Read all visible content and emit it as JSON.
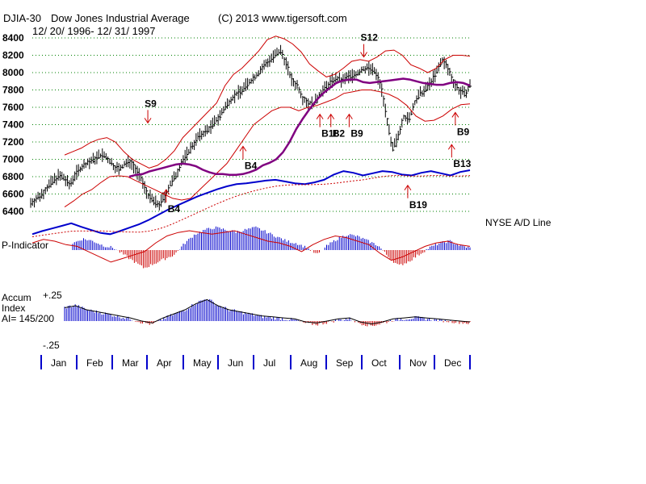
{
  "header": {
    "symbol": "DJIA-30",
    "name": "Dow Jones Industrial Average",
    "copyright": "(C) 2013 www.tigersoft.com",
    "date_range": "12/ 20/ 1996- 12/ 31/ 1997"
  },
  "labels": {
    "ad_line": "NYSE A/D Line",
    "p_indicator": "P-Indicator",
    "accum": "Accum",
    "index": "Index",
    "ai": "AI= 145/200",
    "plus25": "+.25",
    "minus25": "-.25"
  },
  "colors": {
    "price_bars": "#000000",
    "bands": "#cc0000",
    "moving_avg": "#800080",
    "ad_line": "#0000cc",
    "ad_ma": "#cc0000",
    "signal": "#cc0000",
    "gridline": "#008000",
    "positive_hist": "#0000cc",
    "negative_hist": "#cc0000"
  },
  "chart_data": {
    "type": "ohlc",
    "title": "Dow Jones Industrial Average",
    "ylim": [
      6300,
      8450
    ],
    "y_ticks": [
      "8400",
      "8200",
      "8000",
      "7800",
      "7600",
      "7400",
      "7200",
      "7000",
      "6800",
      "6600",
      "6400"
    ],
    "months": [
      "Jan",
      "Feb",
      "Mar",
      "Apr",
      "May",
      "Jun",
      "Jul",
      "Aug",
      "Sep",
      "Oct",
      "Nov",
      "Dec"
    ],
    "price_closes": [
      6500,
      6540,
      6600,
      6680,
      6750,
      6810,
      6780,
      6700,
      6830,
      6900,
      6950,
      6980,
      7030,
      7050,
      6990,
      6920,
      6880,
      6950,
      6980,
      6870,
      6750,
      6600,
      6520,
      6470,
      6560,
      6700,
      6800,
      6950,
      7050,
      7150,
      7250,
      7300,
      7350,
      7420,
      7500,
      7600,
      7700,
      7750,
      7800,
      7870,
      7930,
      8000,
      8080,
      8150,
      8200,
      8250,
      8100,
      7900,
      7850,
      7700,
      7650,
      7640,
      7760,
      7820,
      7900,
      7930,
      7900,
      7950,
      7970,
      8000,
      8050,
      8050,
      8000,
      7850,
      7500,
      7100,
      7250,
      7500,
      7450,
      7650,
      7750,
      7800,
      7900,
      8000,
      8150,
      8050,
      7900,
      7800,
      7750,
      7850
    ],
    "middle_ma": [
      6800,
      6820,
      6830,
      6860,
      6880,
      6900,
      6920,
      6940,
      6950,
      6940,
      6920,
      6880,
      6850,
      6830,
      6830,
      6820,
      6820,
      6830,
      6850,
      6880,
      6930,
      6960,
      7000,
      7080,
      7200,
      7350,
      7470,
      7580,
      7680,
      7760,
      7820,
      7880,
      7910,
      7920,
      7920,
      7890,
      7880,
      7890,
      7900,
      7910,
      7920,
      7930,
      7920,
      7900,
      7880,
      7870,
      7860,
      7860,
      7880,
      7890,
      7880,
      7850
    ],
    "upper_band_closes": [
      7050,
      7090,
      7130,
      7190,
      7230,
      7250,
      7200,
      7090,
      7000,
      6950,
      6900,
      6930,
      7000,
      7100,
      7250,
      7350,
      7450,
      7550,
      7650,
      7850,
      7980,
      8050,
      8150,
      8250,
      8380,
      8420,
      8390,
      8330,
      8240,
      8100,
      8020,
      7950,
      7980,
      8050,
      8130,
      8150,
      8130,
      8180,
      8250,
      8260,
      8200,
      8090,
      8050,
      8000,
      8050,
      8150,
      8200,
      8200,
      8190
    ],
    "lower_band_closes": [
      6450,
      6520,
      6600,
      6650,
      6730,
      6800,
      6810,
      6800,
      6750,
      6700,
      6650,
      6600,
      6550,
      6530,
      6550,
      6650,
      6750,
      6850,
      6950,
      7100,
      7250,
      7400,
      7480,
      7560,
      7600,
      7600,
      7560,
      7600,
      7620,
      7660,
      7700,
      7760,
      7780,
      7800,
      7800,
      7780,
      7750,
      7700,
      7620,
      7500,
      7440,
      7450,
      7500,
      7580,
      7630,
      7640
    ],
    "ad_line": [
      5,
      12,
      18,
      24,
      30,
      22,
      15,
      8,
      5,
      12,
      20,
      28,
      38,
      50,
      62,
      72,
      82,
      92,
      100,
      108,
      115,
      120,
      122,
      125,
      128,
      130,
      126,
      122,
      120,
      124,
      130,
      142,
      150,
      146,
      140,
      145,
      150,
      148,
      142,
      140,
      146,
      150,
      145,
      140,
      148,
      152
    ],
    "p_indicator": [
      0.3,
      0.5,
      0.4,
      0.2,
      0.1,
      -0.2,
      -0.5,
      -0.8,
      -0.6,
      -0.4,
      -0.2,
      0.3,
      0.7,
      0.9,
      1.0,
      0.9,
      0.8,
      0.9,
      1.0,
      0.8,
      0.6,
      0.4,
      0.3,
      0.1,
      -0.2,
      0.2,
      0.5,
      0.7,
      0.6,
      0.4,
      0.2,
      -0.3,
      -0.7,
      -0.5,
      -0.2,
      0.1,
      0.3,
      0.4,
      0.2,
      0.1
    ],
    "accum_index": [
      0.12,
      0.14,
      0.1,
      0.08,
      0.06,
      0.04,
      0.02,
      -0.01,
      -0.03,
      0.02,
      0.06,
      0.1,
      0.16,
      0.2,
      0.14,
      0.1,
      0.08,
      0.06,
      0.04,
      0.03,
      0.02,
      0.01,
      -0.02,
      -0.03,
      -0.01,
      0.01,
      0.02,
      -0.02,
      -0.04,
      -0.02,
      0.01,
      0.02,
      0.03,
      0.02,
      0.01,
      0.0,
      -0.01,
      -0.02
    ],
    "signals": [
      {
        "label": "S9",
        "date_index": 3.2,
        "price": 7420,
        "dir": "down"
      },
      {
        "label": "B4",
        "date_index": 3.7,
        "price": 6650,
        "dir": "up"
      },
      {
        "label": "B4",
        "date_index": 5.8,
        "price": 7150,
        "dir": "up"
      },
      {
        "label": "B18",
        "date_index": 7.9,
        "price": 7520,
        "dir": "up"
      },
      {
        "label": "B2",
        "date_index": 8.2,
        "price": 7520,
        "dir": "up"
      },
      {
        "label": "B9",
        "date_index": 8.7,
        "price": 7520,
        "dir": "up"
      },
      {
        "label": "S12",
        "date_index": 9.1,
        "price": 8180,
        "dir": "down"
      },
      {
        "label": "B19",
        "date_index": 10.3,
        "price": 6700,
        "dir": "up"
      },
      {
        "label": "B9",
        "date_index": 11.6,
        "price": 7540,
        "dir": "up"
      },
      {
        "label": "B13",
        "date_index": 11.5,
        "price": 7170,
        "dir": "up"
      }
    ]
  }
}
